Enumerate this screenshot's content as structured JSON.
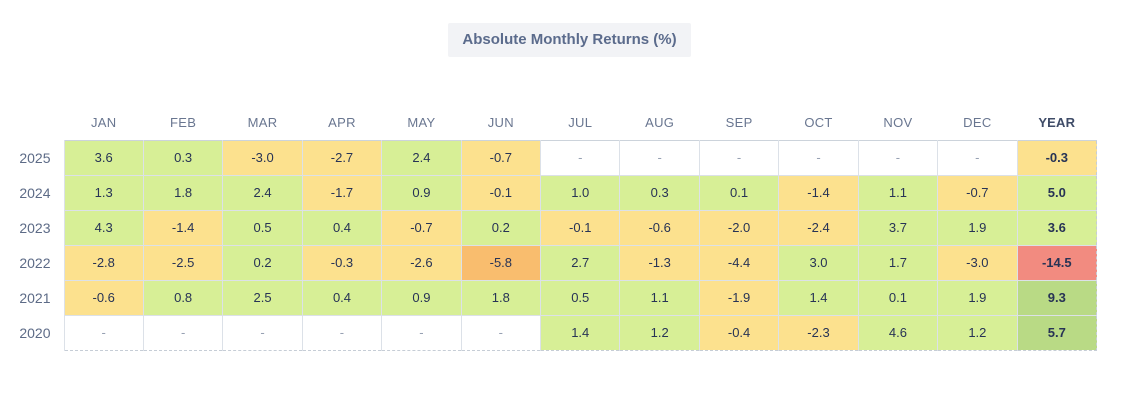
{
  "title": "Absolute Monthly Returns (%)",
  "colors": {
    "title_bg": "#f2f3f6",
    "title_text": "#5b6b8c",
    "header_text": "#697690",
    "cell_text": "#273355",
    "dash_text": "#97a1b3",
    "grid_border": "#dce1e8"
  },
  "palette": {
    "green": "#d7ef96",
    "dark_green": "#b9da85",
    "yellow": "#fce18e",
    "orange": "#f9bd6e",
    "red": "#f28b80",
    "empty": "#ffffff"
  },
  "chart_data": {
    "type": "heatmap",
    "title": "Absolute Monthly Returns (%)",
    "columns": [
      "JAN",
      "FEB",
      "MAR",
      "APR",
      "MAY",
      "JUN",
      "JUL",
      "AUG",
      "SEP",
      "OCT",
      "NOV",
      "DEC",
      "YEAR"
    ],
    "rows": [
      {
        "label": "2025",
        "cells": [
          {
            "v": "3.6",
            "c": "green"
          },
          {
            "v": "0.3",
            "c": "green"
          },
          {
            "v": "-3.0",
            "c": "yellow"
          },
          {
            "v": "-2.7",
            "c": "yellow"
          },
          {
            "v": "2.4",
            "c": "green"
          },
          {
            "v": "-0.7",
            "c": "yellow"
          },
          {
            "v": "-",
            "c": "empty"
          },
          {
            "v": "-",
            "c": "empty"
          },
          {
            "v": "-",
            "c": "empty"
          },
          {
            "v": "-",
            "c": "empty"
          },
          {
            "v": "-",
            "c": "empty"
          },
          {
            "v": "-",
            "c": "empty"
          },
          {
            "v": "-0.3",
            "c": "yellow"
          }
        ]
      },
      {
        "label": "2024",
        "cells": [
          {
            "v": "1.3",
            "c": "green"
          },
          {
            "v": "1.8",
            "c": "green"
          },
          {
            "v": "2.4",
            "c": "green"
          },
          {
            "v": "-1.7",
            "c": "yellow"
          },
          {
            "v": "0.9",
            "c": "green"
          },
          {
            "v": "-0.1",
            "c": "yellow"
          },
          {
            "v": "1.0",
            "c": "green"
          },
          {
            "v": "0.3",
            "c": "green"
          },
          {
            "v": "0.1",
            "c": "green"
          },
          {
            "v": "-1.4",
            "c": "yellow"
          },
          {
            "v": "1.1",
            "c": "green"
          },
          {
            "v": "-0.7",
            "c": "yellow"
          },
          {
            "v": "5.0",
            "c": "green"
          }
        ]
      },
      {
        "label": "2023",
        "cells": [
          {
            "v": "4.3",
            "c": "green"
          },
          {
            "v": "-1.4",
            "c": "yellow"
          },
          {
            "v": "0.5",
            "c": "green"
          },
          {
            "v": "0.4",
            "c": "green"
          },
          {
            "v": "-0.7",
            "c": "yellow"
          },
          {
            "v": "0.2",
            "c": "green"
          },
          {
            "v": "-0.1",
            "c": "yellow"
          },
          {
            "v": "-0.6",
            "c": "yellow"
          },
          {
            "v": "-2.0",
            "c": "yellow"
          },
          {
            "v": "-2.4",
            "c": "yellow"
          },
          {
            "v": "3.7",
            "c": "green"
          },
          {
            "v": "1.9",
            "c": "green"
          },
          {
            "v": "3.6",
            "c": "green"
          }
        ]
      },
      {
        "label": "2022",
        "cells": [
          {
            "v": "-2.8",
            "c": "yellow"
          },
          {
            "v": "-2.5",
            "c": "yellow"
          },
          {
            "v": "0.2",
            "c": "green"
          },
          {
            "v": "-0.3",
            "c": "yellow"
          },
          {
            "v": "-2.6",
            "c": "yellow"
          },
          {
            "v": "-5.8",
            "c": "orange"
          },
          {
            "v": "2.7",
            "c": "green"
          },
          {
            "v": "-1.3",
            "c": "yellow"
          },
          {
            "v": "-4.4",
            "c": "yellow"
          },
          {
            "v": "3.0",
            "c": "green"
          },
          {
            "v": "1.7",
            "c": "green"
          },
          {
            "v": "-3.0",
            "c": "yellow"
          },
          {
            "v": "-14.5",
            "c": "red"
          }
        ]
      },
      {
        "label": "2021",
        "cells": [
          {
            "v": "-0.6",
            "c": "yellow"
          },
          {
            "v": "0.8",
            "c": "green"
          },
          {
            "v": "2.5",
            "c": "green"
          },
          {
            "v": "0.4",
            "c": "green"
          },
          {
            "v": "0.9",
            "c": "green"
          },
          {
            "v": "1.8",
            "c": "green"
          },
          {
            "v": "0.5",
            "c": "green"
          },
          {
            "v": "1.1",
            "c": "green"
          },
          {
            "v": "-1.9",
            "c": "yellow"
          },
          {
            "v": "1.4",
            "c": "green"
          },
          {
            "v": "0.1",
            "c": "green"
          },
          {
            "v": "1.9",
            "c": "green"
          },
          {
            "v": "9.3",
            "c": "dark_green"
          }
        ]
      },
      {
        "label": "2020",
        "cells": [
          {
            "v": "-",
            "c": "empty"
          },
          {
            "v": "-",
            "c": "empty"
          },
          {
            "v": "-",
            "c": "empty"
          },
          {
            "v": "-",
            "c": "empty"
          },
          {
            "v": "-",
            "c": "empty"
          },
          {
            "v": "-",
            "c": "empty"
          },
          {
            "v": "1.4",
            "c": "green"
          },
          {
            "v": "1.2",
            "c": "green"
          },
          {
            "v": "-0.4",
            "c": "yellow"
          },
          {
            "v": "-2.3",
            "c": "yellow"
          },
          {
            "v": "4.6",
            "c": "green"
          },
          {
            "v": "1.2",
            "c": "green"
          },
          {
            "v": "5.7",
            "c": "dark_green"
          }
        ]
      }
    ]
  }
}
